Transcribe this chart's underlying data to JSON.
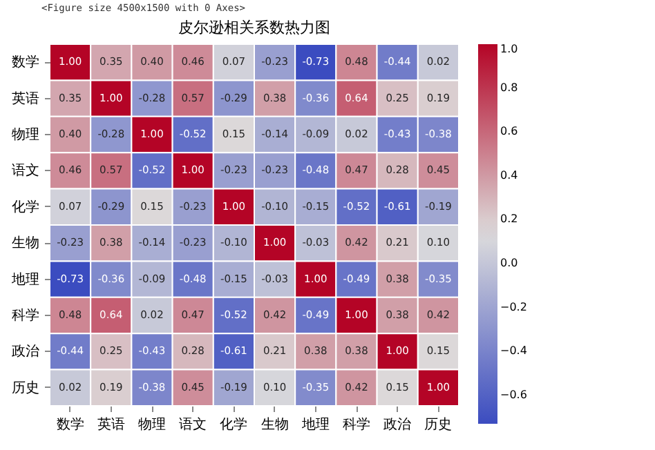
{
  "chart_data": {
    "type": "heatmap",
    "title": "皮尔逊相关系数热力图",
    "annotations": [
      "<Figure size 4500x1500 with 0 Axes>"
    ],
    "categories": [
      "数学",
      "英语",
      "物理",
      "语文",
      "化学",
      "生物",
      "地理",
      "科学",
      "政治",
      "历史"
    ],
    "y_categories": [
      "数学",
      "英语",
      "物理",
      "语文",
      "化学",
      "生物",
      "地理",
      "科学",
      "政治",
      "历史"
    ],
    "cells": [
      [
        1.0,
        0.35,
        0.4,
        0.46,
        0.07,
        -0.23,
        -0.73,
        0.48,
        -0.44,
        0.02
      ],
      [
        0.35,
        1.0,
        -0.28,
        0.57,
        -0.29,
        0.38,
        -0.36,
        0.64,
        0.25,
        0.19
      ],
      [
        0.4,
        -0.28,
        1.0,
        -0.52,
        0.15,
        -0.14,
        -0.09,
        0.02,
        -0.43,
        -0.38
      ],
      [
        0.46,
        0.57,
        -0.52,
        1.0,
        -0.23,
        -0.23,
        -0.48,
        0.47,
        0.28,
        0.45
      ],
      [
        0.07,
        -0.29,
        0.15,
        -0.23,
        1.0,
        -0.1,
        -0.15,
        -0.52,
        -0.61,
        -0.19
      ],
      [
        -0.23,
        0.38,
        -0.14,
        -0.23,
        -0.1,
        1.0,
        -0.03,
        0.42,
        0.21,
        0.1
      ],
      [
        -0.73,
        -0.36,
        -0.09,
        -0.48,
        -0.15,
        -0.03,
        1.0,
        -0.49,
        0.38,
        -0.35
      ],
      [
        0.48,
        0.64,
        0.02,
        0.47,
        -0.52,
        0.42,
        -0.49,
        1.0,
        0.38,
        0.42
      ],
      [
        -0.44,
        0.25,
        -0.43,
        0.28,
        -0.61,
        0.21,
        0.38,
        0.38,
        1.0,
        0.15
      ],
      [
        0.02,
        0.19,
        -0.38,
        0.45,
        -0.19,
        0.1,
        -0.35,
        0.42,
        0.15,
        1.0
      ]
    ],
    "cell_labels": [
      [
        "1.00",
        "0.35",
        "0.40",
        "0.46",
        "0.07",
        "-0.23",
        "-0.73",
        "0.48",
        "-0.44",
        "0.02"
      ],
      [
        "0.35",
        "1.00",
        "-0.28",
        "0.57",
        "-0.29",
        "0.38",
        "-0.36",
        "0.64",
        "0.25",
        "0.19"
      ],
      [
        "0.40",
        "-0.28",
        "1.00",
        "-0.52",
        "0.15",
        "-0.14",
        "-0.09",
        "0.02",
        "-0.43",
        "-0.38"
      ],
      [
        "0.46",
        "0.57",
        "-0.52",
        "1.00",
        "-0.23",
        "-0.23",
        "-0.48",
        "0.47",
        "0.28",
        "0.45"
      ],
      [
        "0.07",
        "-0.29",
        "0.15",
        "-0.23",
        "1.00",
        "-0.10",
        "-0.15",
        "-0.52",
        "-0.61",
        "-0.19"
      ],
      [
        "-0.23",
        "0.38",
        "-0.14",
        "-0.23",
        "-0.10",
        "1.00",
        "-0.03",
        "0.42",
        "0.21",
        "0.10"
      ],
      [
        "-0.73",
        "-0.36",
        "-0.09",
        "-0.48",
        "-0.15",
        "-0.03",
        "1.00",
        "-0.49",
        "0.38",
        "-0.35"
      ],
      [
        "0.48",
        "0.64",
        "0.02",
        "0.47",
        "-0.52",
        "0.42",
        "-0.49",
        "1.00",
        "0.38",
        "0.42"
      ],
      [
        "-0.44",
        "0.25",
        "-0.43",
        "0.28",
        "-0.61",
        "0.21",
        "0.38",
        "0.38",
        "1.00",
        "0.15"
      ],
      [
        "0.02",
        "0.19",
        "-0.38",
        "0.45",
        "-0.19",
        "0.10",
        "-0.35",
        "0.42",
        "0.15",
        "1.00"
      ]
    ],
    "clim": [
      -0.73,
      1.0
    ],
    "cticks": [
      {
        "value": -0.6,
        "label": "−0.6"
      },
      {
        "value": -0.4,
        "label": "−0.4"
      },
      {
        "value": -0.2,
        "label": "−0.2"
      },
      {
        "value": 0,
        "label": "0.0"
      },
      0.2,
      0.4,
      0.6,
      0.8,
      {
        "value": 1,
        "label": "1.0"
      }
    ]
  }
}
